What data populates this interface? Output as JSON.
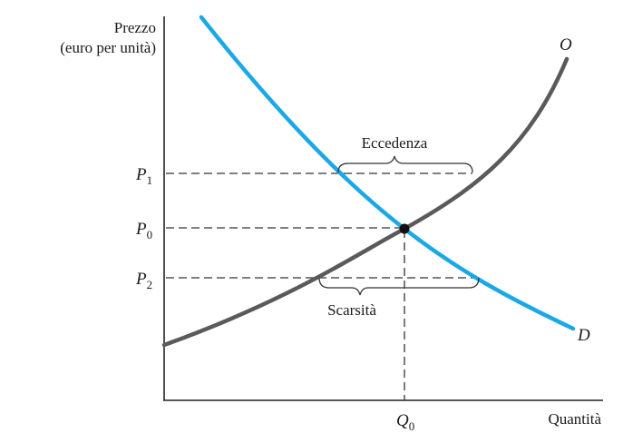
{
  "axes": {
    "y_title_line1": "Prezzo",
    "y_title_line2": "(euro per unità)",
    "x_title": "Quantità"
  },
  "prices": {
    "p1": {
      "main": "P",
      "sub": "1"
    },
    "p0": {
      "main": "P",
      "sub": "0"
    },
    "p2": {
      "main": "P",
      "sub": "2"
    }
  },
  "quantity": {
    "q0": {
      "main": "Q",
      "sub": "0"
    }
  },
  "curves": {
    "supply_label": "O",
    "demand_label": "D"
  },
  "annotations": {
    "surplus": "Eccedenza",
    "shortage": "Scarsità"
  },
  "colors": {
    "supply": "#5a5a5a",
    "demand": "#1ba8e6",
    "axis": "#222222",
    "guide": "#333333",
    "equilibrium": "#111111"
  }
}
